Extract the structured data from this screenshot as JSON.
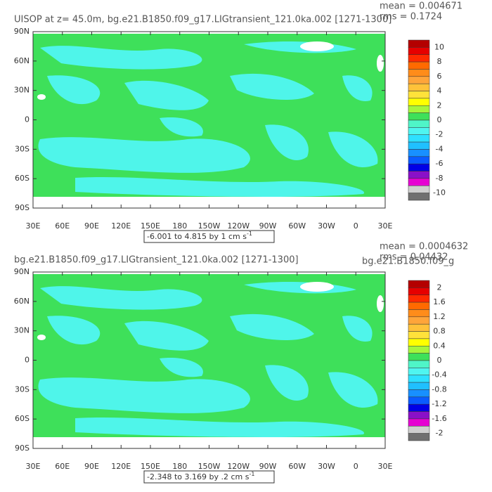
{
  "panels": [
    {
      "title": "UISOP at z=  45.0m, bg.e21.B1850.f09_g17.LIGtransient_121.0ka.002 [1271-1300]",
      "mean": "mean = 0.004671",
      "rms": "rms = 0.1724",
      "range_text": "-6.001 to 4.815 by 1 cm s",
      "range_sup": "-1",
      "x_labels": [
        "30E",
        "60E",
        "90E",
        "120E",
        "150E",
        "180",
        "150W",
        "120W",
        "90W",
        "60W",
        "30W",
        "0",
        "30E"
      ],
      "y_labels": [
        "90N",
        "60N",
        "30N",
        "0",
        "30S",
        "60S",
        "90S"
      ],
      "colorbar": {
        "colors": [
          "#b40000",
          "#e60000",
          "#ff2a00",
          "#ff6a00",
          "#ff8c1a",
          "#ffa53a",
          "#ffc23a",
          "#ffe23a",
          "#ffff00",
          "#a6f53c",
          "#3ee05a",
          "#4ff5c8",
          "#4ff5f0",
          "#2ee0ff",
          "#20c0ff",
          "#1890ff",
          "#0a5cff",
          "#0000e6",
          "#8a10c8",
          "#e600d2",
          "#cfcfcf",
          "#707070"
        ],
        "ticks": [
          10,
          8,
          6,
          4,
          2,
          0,
          -2,
          -4,
          -6,
          -8,
          -10
        ]
      }
    },
    {
      "title": "bg.e21.B1850.f09_g17.LIGtransient_121.0ka.002 [1271-1300]",
      "mean": "mean = 0.0004632",
      "rms": "rms = 0.04432",
      "overlap_text": "bg.e21.B1850.f09_g",
      "range_text": "-2.348 to 3.169 by .2 cm s",
      "range_sup": "-1",
      "x_labels": [
        "30E",
        "60E",
        "90E",
        "120E",
        "150E",
        "180",
        "150W",
        "120W",
        "90W",
        "60W",
        "30W",
        "0",
        "30E"
      ],
      "y_labels": [
        "90N",
        "60N",
        "30N",
        "0",
        "30S",
        "60S",
        "90S"
      ],
      "colorbar": {
        "colors": [
          "#b40000",
          "#e60000",
          "#ff2a00",
          "#ff6a00",
          "#ff8c1a",
          "#ffa53a",
          "#ffc23a",
          "#ffe23a",
          "#ffff00",
          "#a6f53c",
          "#3ee05a",
          "#4ff5c8",
          "#4ff5f0",
          "#2ee0ff",
          "#20c0ff",
          "#1890ff",
          "#0a5cff",
          "#0000e6",
          "#8a10c8",
          "#e600d2",
          "#cfcfcf",
          "#707070"
        ],
        "ticks": [
          2,
          1.6,
          1.2,
          0.8,
          0.4,
          0,
          -0.4,
          -0.8,
          -1.2,
          -1.6,
          -2
        ]
      }
    }
  ]
}
